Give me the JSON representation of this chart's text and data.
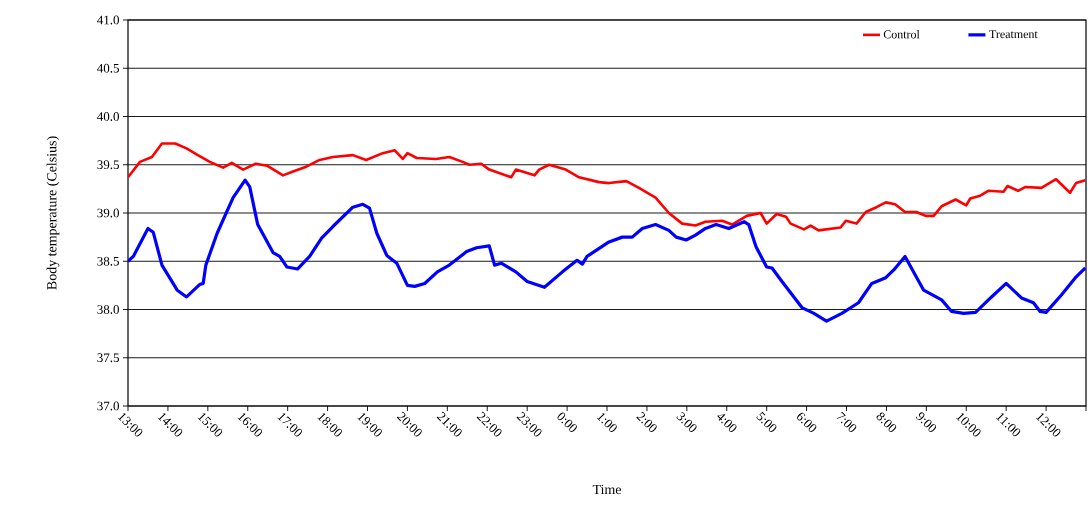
{
  "chart_data": {
    "type": "line",
    "xlabel": "Time",
    "ylabel": "Body temperature (Celsius)",
    "xlim": [
      "2000-01-01T13:00",
      "2000-01-02T13:00"
    ],
    "ylim": [
      37,
      41
    ],
    "xticks": [
      {
        "value": "2000-01-01T13:00",
        "label": "13:00"
      },
      {
        "value": "2000-01-01T14:00",
        "label": "14:00"
      },
      {
        "value": "2000-01-01T15:00",
        "label": "15:00"
      },
      {
        "value": "2000-01-01T16:00",
        "label": "16:00"
      },
      {
        "value": "2000-01-01T17:00",
        "label": "17:00"
      },
      {
        "value": "2000-01-01T18:00",
        "label": "18:00"
      },
      {
        "value": "2000-01-01T19:00",
        "label": "19:00"
      },
      {
        "value": "2000-01-01T20:00",
        "label": "20:00"
      },
      {
        "value": "2000-01-01T21:00",
        "label": "21:00"
      },
      {
        "value": "2000-01-01T22:00",
        "label": "22:00"
      },
      {
        "value": "2000-01-01T23:00",
        "label": "23:00"
      },
      {
        "value": "2000-01-02T00:00",
        "label": "0:00"
      },
      {
        "value": "2000-01-02T01:00",
        "label": "1:00"
      },
      {
        "value": "2000-01-02T02:00",
        "label": "2:00"
      },
      {
        "value": "2000-01-02T03:00",
        "label": "3:00"
      },
      {
        "value": "2000-01-02T04:00",
        "label": "4:00"
      },
      {
        "value": "2000-01-02T05:00",
        "label": "5:00"
      },
      {
        "value": "2000-01-02T06:00",
        "label": "6:00"
      },
      {
        "value": "2000-01-02T07:00",
        "label": "7:00"
      },
      {
        "value": "2000-01-02T08:00",
        "label": "8:00"
      },
      {
        "value": "2000-01-02T09:00",
        "label": "9:00"
      },
      {
        "value": "2000-01-02T10:00",
        "label": "10:00"
      },
      {
        "value": "2000-01-02T11:00",
        "label": "11:00"
      },
      {
        "value": "2000-01-02T12:00",
        "label": "12:00"
      },
      {
        "value": "2000-01-02T13:00",
        "label": null
      }
    ],
    "yticks": [
      {
        "value": 37,
        "label": "37.0"
      },
      {
        "value": 37.5,
        "label": "37.5"
      },
      {
        "value": 38,
        "label": "38.0"
      },
      {
        "value": 38.5,
        "label": "38.5"
      },
      {
        "value": 39,
        "label": "39.0"
      },
      {
        "value": 39.5,
        "label": "39.5"
      },
      {
        "value": 40,
        "label": "40.0"
      },
      {
        "value": 40.5,
        "label": "40.5"
      },
      {
        "value": 41,
        "label": "41.0"
      }
    ],
    "grid": "y",
    "legend": "top right",
    "marker": "none",
    "line_style": "solid",
    "series": [
      {
        "name": "Control",
        "color": "#ff0000",
        "x": [
          "2000-01-01T13:00",
          "2000-01-01T13:18",
          "2000-01-01T13:36",
          "2000-01-01T13:51",
          "2000-01-01T14:11",
          "2000-01-01T14:28",
          "2000-01-01T14:45",
          "2000-01-01T15:03",
          "2000-01-01T15:23",
          "2000-01-01T15:36",
          "2000-01-01T15:53",
          "2000-01-01T16:12",
          "2000-01-01T16:29",
          "2000-01-01T16:53",
          "2000-01-01T17:08",
          "2000-01-01T17:28",
          "2000-01-01T17:48",
          "2000-01-01T18:08",
          "2000-01-01T18:38",
          "2000-01-01T18:58",
          "2000-01-01T19:23",
          "2000-01-01T19:41",
          "2000-01-01T19:53",
          "2000-01-01T20:00",
          "2000-01-01T20:14",
          "2000-01-01T20:43",
          "2000-01-01T21:03",
          "2000-01-01T21:23",
          "2000-01-01T21:33",
          "2000-01-01T21:51",
          "2000-01-01T22:03",
          "2000-01-01T22:36",
          "2000-01-01T22:43",
          "2000-01-01T23:11",
          "2000-01-01T23:18",
          "2000-01-01T23:33",
          "2000-01-01T23:58",
          "2000-01-02T00:18",
          "2000-01-02T00:48",
          "2000-01-02T01:03",
          "2000-01-02T01:29",
          "2000-01-02T01:48",
          "2000-01-02T02:13",
          "2000-01-02T02:33",
          "2000-01-02T02:53",
          "2000-01-02T03:13",
          "2000-01-02T03:28",
          "2000-01-02T03:53",
          "2000-01-02T04:08",
          "2000-01-02T04:30",
          "2000-01-02T04:51",
          "2000-01-02T05:00",
          "2000-01-02T05:15",
          "2000-01-02T05:29",
          "2000-01-02T05:36",
          "2000-01-02T05:56",
          "2000-01-02T06:06",
          "2000-01-02T06:18",
          "2000-01-02T06:51",
          "2000-01-02T06:59",
          "2000-01-02T07:15",
          "2000-01-02T07:29",
          "2000-01-02T07:45",
          "2000-01-02T07:59",
          "2000-01-02T08:13",
          "2000-01-02T08:28",
          "2000-01-02T08:45",
          "2000-01-02T08:59",
          "2000-01-02T09:11",
          "2000-01-02T09:23",
          "2000-01-02T09:44",
          "2000-01-02T10:00",
          "2000-01-02T10:06",
          "2000-01-02T10:21",
          "2000-01-02T10:33",
          "2000-01-02T10:56",
          "2000-01-02T11:02",
          "2000-01-02T11:18",
          "2000-01-02T11:29",
          "2000-01-02T11:53",
          "2000-01-02T12:15",
          "2000-01-02T12:36",
          "2000-01-02T12:45",
          "2000-01-02T12:59"
        ],
        "values": [
          39.37,
          39.53,
          39.58,
          39.72,
          39.72,
          39.67,
          39.6,
          39.53,
          39.47,
          39.52,
          39.45,
          39.51,
          39.49,
          39.39,
          39.43,
          39.48,
          39.55,
          39.58,
          39.6,
          39.55,
          39.62,
          39.65,
          39.56,
          39.62,
          39.57,
          39.56,
          39.58,
          39.53,
          39.5,
          39.51,
          39.45,
          39.37,
          39.45,
          39.39,
          39.45,
          39.5,
          39.45,
          39.37,
          39.32,
          39.31,
          39.33,
          39.26,
          39.16,
          39.0,
          38.89,
          38.87,
          38.91,
          38.92,
          38.88,
          38.97,
          39.0,
          38.89,
          38.99,
          38.96,
          38.89,
          38.83,
          38.87,
          38.82,
          38.85,
          38.92,
          38.89,
          39.01,
          39.06,
          39.11,
          39.09,
          39.01,
          39.01,
          38.97,
          38.97,
          39.07,
          39.14,
          39.08,
          39.15,
          39.18,
          39.23,
          39.22,
          39.28,
          39.23,
          39.27,
          39.26,
          39.35,
          39.21,
          39.31,
          39.34
        ]
      },
      {
        "name": "Treatment",
        "color": "#0000ff",
        "x": [
          "2000-01-01T13:00",
          "2000-01-01T13:08",
          "2000-01-01T13:30",
          "2000-01-01T13:38",
          "2000-01-01T13:51",
          "2000-01-01T14:14",
          "2000-01-01T14:28",
          "2000-01-01T14:48",
          "2000-01-01T14:53",
          "2000-01-01T14:57",
          "2000-01-01T15:14",
          "2000-01-01T15:38",
          "2000-01-01T15:56",
          "2000-01-01T16:03",
          "2000-01-01T16:15",
          "2000-01-01T16:38",
          "2000-01-01T16:48",
          "2000-01-01T16:59",
          "2000-01-01T17:15",
          "2000-01-01T17:33",
          "2000-01-01T17:51",
          "2000-01-01T18:08",
          "2000-01-01T18:38",
          "2000-01-01T18:53",
          "2000-01-01T19:03",
          "2000-01-01T19:14",
          "2000-01-01T19:29",
          "2000-01-01T19:44",
          "2000-01-01T20:00",
          "2000-01-01T20:11",
          "2000-01-01T20:26",
          "2000-01-01T20:45",
          "2000-01-01T21:03",
          "2000-01-01T21:29",
          "2000-01-01T21:44",
          "2000-01-01T22:03",
          "2000-01-01T22:11",
          "2000-01-01T22:21",
          "2000-01-01T22:43",
          "2000-01-01T23:00",
          "2000-01-01T23:26",
          "2000-01-01T23:53",
          "2000-01-02T00:15",
          "2000-01-02T00:23",
          "2000-01-02T00:30",
          "2000-01-02T01:03",
          "2000-01-02T01:23",
          "2000-01-02T01:38",
          "2000-01-02T01:53",
          "2000-01-02T02:13",
          "2000-01-02T02:33",
          "2000-01-02T02:44",
          "2000-01-02T02:59",
          "2000-01-02T03:13",
          "2000-01-02T03:28",
          "2000-01-02T03:44",
          "2000-01-02T04:03",
          "2000-01-02T04:26",
          "2000-01-02T04:33",
          "2000-01-02T04:44",
          "2000-01-02T05:00",
          "2000-01-02T05:08",
          "2000-01-02T05:23",
          "2000-01-02T05:53",
          "2000-01-02T06:11",
          "2000-01-02T06:30",
          "2000-01-02T06:53",
          "2000-01-02T07:18",
          "2000-01-02T07:38",
          "2000-01-02T07:59",
          "2000-01-02T08:11",
          "2000-01-02T08:28",
          "2000-01-02T08:56",
          "2000-01-02T09:23",
          "2000-01-02T09:38",
          "2000-01-02T09:56",
          "2000-01-02T10:14",
          "2000-01-02T10:38",
          "2000-01-02T11:00",
          "2000-01-02T11:23",
          "2000-01-02T11:41",
          "2000-01-02T11:51",
          "2000-01-02T12:00",
          "2000-01-02T12:23",
          "2000-01-02T12:44",
          "2000-01-02T12:59"
        ],
        "values": [
          38.5,
          38.55,
          38.84,
          38.8,
          38.46,
          38.2,
          38.13,
          38.26,
          38.27,
          38.46,
          38.79,
          39.16,
          39.34,
          39.27,
          38.88,
          38.59,
          38.55,
          38.44,
          38.42,
          38.55,
          38.74,
          38.86,
          39.06,
          39.09,
          39.05,
          38.79,
          38.56,
          38.48,
          38.25,
          38.24,
          38.27,
          38.39,
          38.46,
          38.6,
          38.64,
          38.66,
          38.46,
          38.48,
          38.39,
          38.29,
          38.23,
          38.39,
          38.51,
          38.47,
          38.55,
          38.7,
          38.75,
          38.75,
          38.84,
          38.88,
          38.82,
          38.75,
          38.72,
          38.77,
          38.84,
          38.88,
          38.84,
          38.91,
          38.88,
          38.65,
          38.44,
          38.43,
          38.29,
          38.02,
          37.96,
          37.88,
          37.96,
          38.07,
          38.27,
          38.33,
          38.41,
          38.55,
          38.2,
          38.1,
          37.98,
          37.96,
          37.97,
          38.13,
          38.27,
          38.12,
          38.07,
          37.98,
          37.97,
          38.15,
          38.33,
          38.43
        ]
      }
    ]
  }
}
